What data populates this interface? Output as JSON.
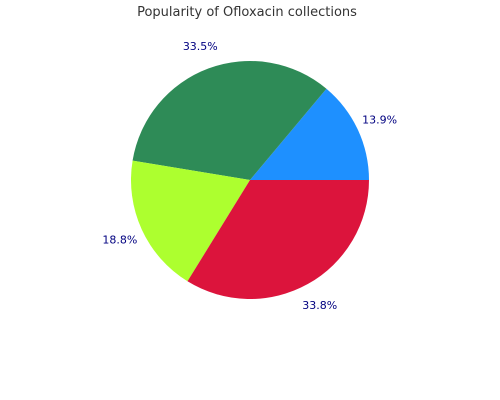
{
  "chart_data": {
    "type": "pie",
    "title": "Popularity of Ofloxacin collections",
    "slices": [
      {
        "label": "13.9%",
        "value": 13.9,
        "color": "#1E90FF"
      },
      {
        "label": "33.5%",
        "value": 33.5,
        "color": "#2E8B57"
      },
      {
        "label": "18.8%",
        "value": 18.8,
        "color": "#ADFF2F"
      },
      {
        "label": "33.8%",
        "value": 33.8,
        "color": "#DC143C"
      }
    ],
    "start_angle_deg": 0,
    "direction": "counterclockwise",
    "label_color": "#000080",
    "legend": "none"
  }
}
